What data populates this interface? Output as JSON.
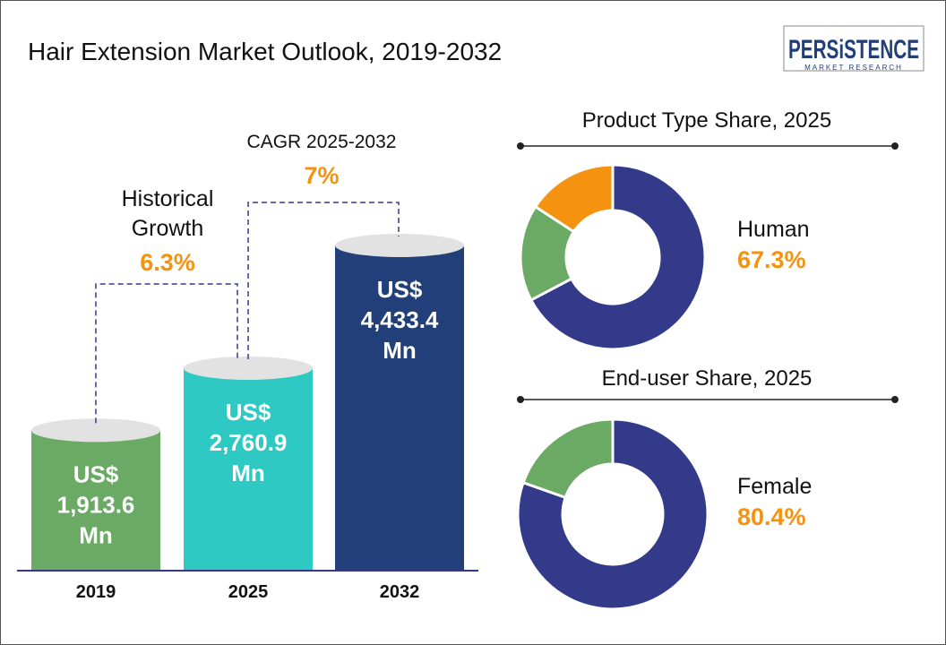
{
  "logo": {
    "main": "PERSiSTENCE",
    "sub": "MARKET RESEARCH"
  },
  "chart_data": [
    {
      "type": "bar",
      "title": "Hair Extension Market Outlook, 2019-2032",
      "categories": [
        "2019",
        "2025",
        "2032"
      ],
      "values": [
        1913.6,
        2760.9,
        4433.4
      ],
      "value_labels": [
        [
          "US$",
          "1,913.6",
          "Mn"
        ],
        [
          "US$",
          "2,760.9",
          "Mn"
        ],
        [
          "US$",
          "4,433.4",
          "Mn"
        ]
      ],
      "colors": [
        "#6aaa64",
        "#2ec9c3",
        "#233f7a"
      ],
      "annotations": [
        {
          "label_lines": [
            "Historical",
            "Growth"
          ],
          "value": "6.3%"
        },
        {
          "label_lines": [
            "CAGR 2025-2032"
          ],
          "value": "7%"
        }
      ]
    },
    {
      "type": "pie",
      "title": "Product Type Share, 2025",
      "slices": [
        {
          "name": "Human",
          "value": 67.3,
          "color": "#343a8a"
        },
        {
          "name": "",
          "value": 16.9,
          "color": "#6aaa64"
        },
        {
          "name": "",
          "value": 15.8,
          "color": "#f5920f"
        }
      ],
      "highlight": {
        "label": "Human",
        "value": "67.3%"
      }
    },
    {
      "type": "pie",
      "title": "End-user Share, 2025",
      "slices": [
        {
          "name": "Female",
          "value": 80.4,
          "color": "#343a8a"
        },
        {
          "name": "",
          "value": 19.6,
          "color": "#6aaa64"
        }
      ],
      "highlight": {
        "label": "Female",
        "value": "80.4%"
      }
    }
  ],
  "accent": "#f5920f"
}
